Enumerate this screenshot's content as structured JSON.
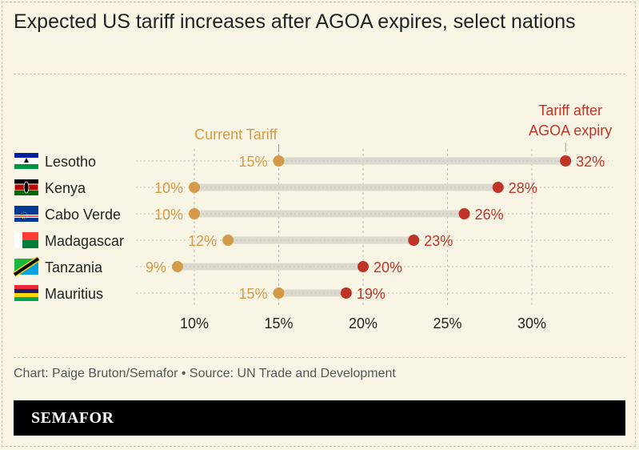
{
  "title": "Expected US tariff increases after AGOA expires, select nations",
  "credit": "Chart: Paige Bruton/Semafor  • Source: UN Trade and Development",
  "brand": "SEMAFOR",
  "chart_data": {
    "type": "dumbbell",
    "categories": [
      "Lesotho",
      "Kenya",
      "Cabo Verde",
      "Madagascar",
      "Tanzania",
      "Mauritius"
    ],
    "series": [
      {
        "name": "Current Tariff",
        "color": "#d39a4a",
        "values": [
          15,
          10,
          10,
          12,
          9,
          15
        ]
      },
      {
        "name": "Tariff after AGOA expiry",
        "color": "#be3427",
        "values": [
          32,
          28,
          26,
          23,
          20,
          19
        ]
      }
    ],
    "x_ticks": [
      "10%",
      "15%",
      "20%",
      "25%",
      "30%"
    ],
    "x_tick_values": [
      10,
      15,
      20,
      25,
      30
    ],
    "xlim": [
      6,
      34
    ],
    "grid": true,
    "flags": [
      "lesotho-flag",
      "kenya-flag",
      "cabo-verde-flag",
      "madagascar-flag",
      "tanzania-flag",
      "mauritius-flag"
    ]
  }
}
